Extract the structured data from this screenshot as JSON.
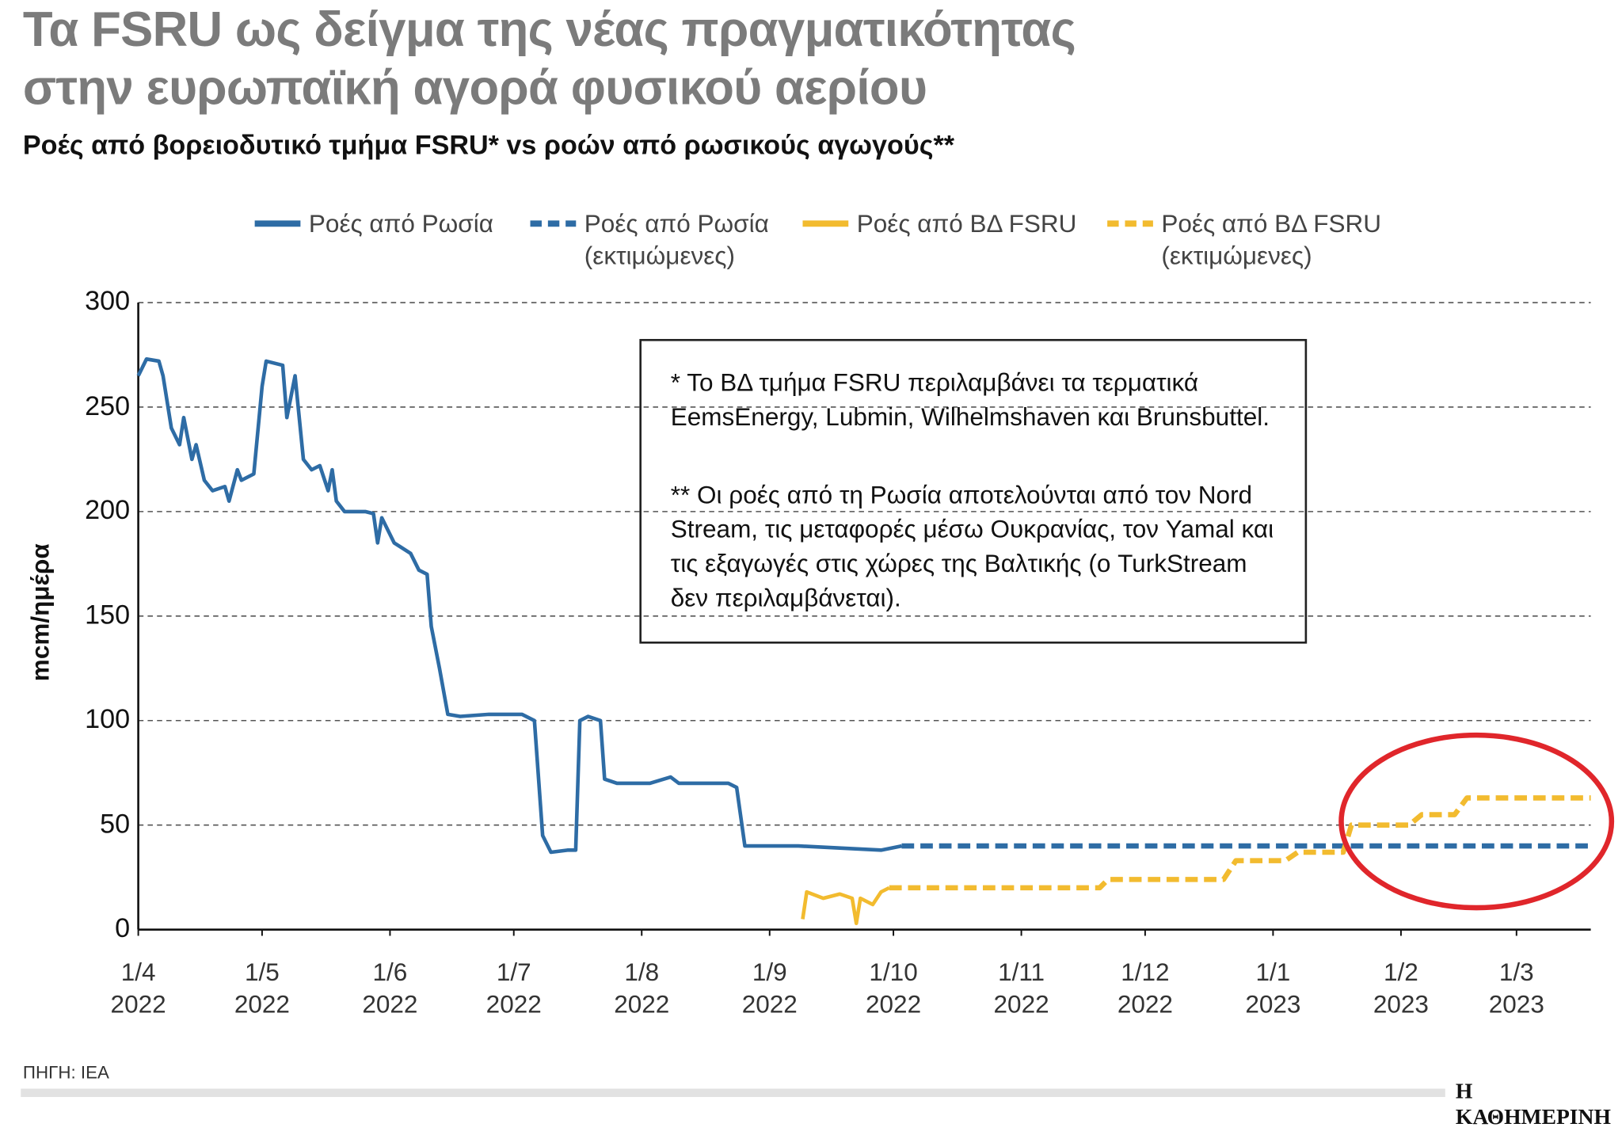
{
  "chart_data": {
    "type": "line",
    "title": "Τα FSRU ως δείγμα της νέας πραγματικότητας\nστην ευρωπαϊκή αγορά φυσικού αερίου",
    "subtitle": "Ροές από βορειοδυτικό τμήμα FSRU* vs ροών από ρωσικούς αγωγούς**",
    "y_label": "mcm/ημέρα",
    "xlim": [
      0,
      352
    ],
    "xticks": [
      {
        "value": 0,
        "label": "1/4\n2022"
      },
      {
        "value": 30,
        "label": "1/5\n2022"
      },
      {
        "value": 61,
        "label": "1/6\n2022"
      },
      {
        "value": 91,
        "label": "1/7\n2022"
      },
      {
        "value": 122,
        "label": "1/8\n2022"
      },
      {
        "value": 153,
        "label": "1/9\n2022"
      },
      {
        "value": 183,
        "label": "1/10\n2022"
      },
      {
        "value": 214,
        "label": "1/11\n2022"
      },
      {
        "value": 244,
        "label": "1/12\n2022"
      },
      {
        "value": 275,
        "label": "1/1\n2023"
      },
      {
        "value": 306,
        "label": "1/2\n2023"
      },
      {
        "value": 334,
        "label": "1/3\n2023"
      }
    ],
    "ylim": [
      0,
      300
    ],
    "yticks": [
      0,
      50,
      100,
      150,
      200,
      250,
      300
    ],
    "grid": true,
    "series": [
      {
        "name": "Ροές από Ρωσία",
        "color": "#2e6ca5",
        "dashed": false,
        "x": [
          0,
          2,
          5,
          6,
          8,
          10,
          11,
          13,
          14,
          16,
          18,
          21,
          22,
          24,
          25,
          28,
          30,
          31,
          35,
          36,
          38,
          40,
          42,
          44,
          46,
          47,
          48,
          50,
          55,
          57,
          58,
          59,
          62,
          66,
          68,
          70,
          71,
          73,
          75,
          78,
          85,
          93,
          96,
          98,
          100,
          104,
          106,
          107,
          109,
          112,
          113,
          116,
          124,
          129,
          131,
          139,
          143,
          145,
          147,
          155,
          160,
          170,
          180,
          185
        ],
        "values": [
          265,
          273,
          272,
          265,
          240,
          232,
          245,
          225,
          232,
          215,
          210,
          212,
          205,
          220,
          215,
          218,
          260,
          272,
          270,
          245,
          265,
          225,
          220,
          222,
          210,
          220,
          205,
          200,
          200,
          199,
          185,
          197,
          185,
          180,
          172,
          170,
          145,
          125,
          103,
          102,
          103,
          103,
          100,
          45,
          37,
          38,
          38,
          100,
          102,
          100,
          72,
          70,
          70,
          73,
          70,
          70,
          70,
          68,
          40,
          40,
          40,
          39,
          38,
          40
        ]
      },
      {
        "name": "Ροές από Ρωσία\n(εκτιμώμενες)",
        "color": "#2e6ca5",
        "dashed": true,
        "x": [
          185,
          352
        ],
        "values": [
          40,
          40
        ]
      },
      {
        "name": "Ροές από ΒΔ FSRU",
        "color": "#f2bb2f",
        "dashed": false,
        "x": [
          161,
          162,
          166,
          170,
          173,
          174,
          175,
          178,
          180,
          182
        ],
        "values": [
          5,
          18,
          15,
          17,
          15,
          3,
          15,
          12,
          18,
          20
        ]
      },
      {
        "name": "Ροές από ΒΔ FSRU\n(εκτιμώμενες)",
        "color": "#f2bb2f",
        "dashed": true,
        "x": [
          182,
          233,
          235,
          263,
          266,
          278,
          281,
          292,
          294,
          308,
          311,
          319,
          322,
          352
        ],
        "values": [
          20,
          20,
          24,
          24,
          33,
          33,
          37,
          37,
          50,
          50,
          55,
          55,
          63,
          63
        ]
      }
    ],
    "notes": [
      "* Το ΒΔ τμήμα FSRU περιλαμβάνει τα τερματικά EemsEnergy, Lubmin, Wilhelmshaven και Brunsbuttel.",
      "** Οι ροές από τη Ρωσία αποτελούνται από τον Nord Stream, τις μεταφορές μέσω Ουκρανίας, τον Yamal και τις εξαγωγές στις χώρες της Βαλτικής (ο TurkStream δεν περιλαμβάνεται)."
    ],
    "source": "ΠΗΓΗ: IEA",
    "publisher": "Η ΚΑΘΗΜΕΡΙΝΗ"
  }
}
